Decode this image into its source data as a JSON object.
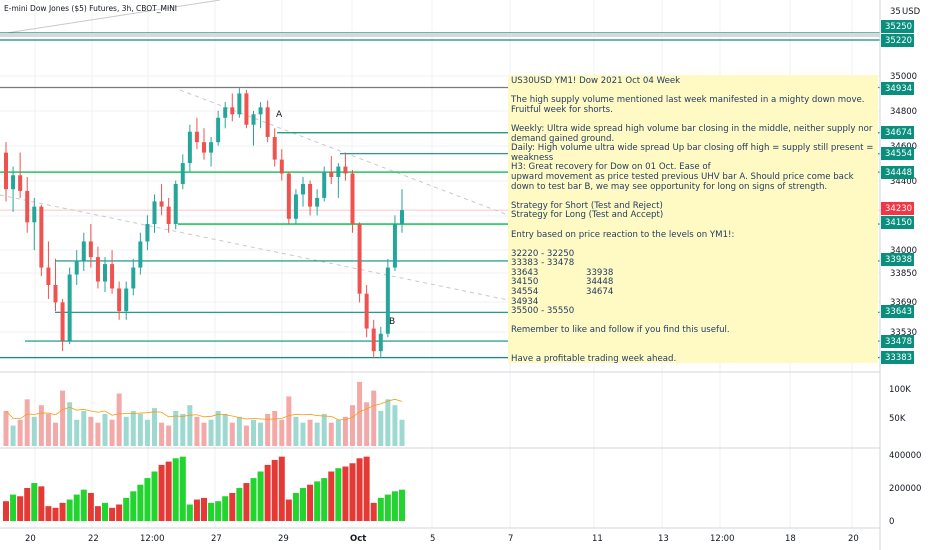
{
  "header": {
    "title": "E-mini Dow Jones ($5) Futures, 3h, CBOT_MINI"
  },
  "axis": {
    "currency": "USD",
    "price_ticks": [
      35000,
      34800,
      34600,
      34400,
      34000,
      33850,
      33690,
      33530
    ],
    "price_top_label": "35",
    "volume_ticks": [
      "100K",
      "50K"
    ],
    "osc_ticks": [
      "400000",
      "200000",
      "0"
    ],
    "time_ticks": [
      "20",
      "22",
      "12:00",
      "27",
      "29",
      "Oct",
      "5",
      "7",
      "11",
      "13",
      "12:00",
      "18",
      "20"
    ]
  },
  "price_badges": [
    {
      "value": "35250",
      "color": "#0a8f7e"
    },
    {
      "value": "35220",
      "color": "#0a8f7e"
    },
    {
      "value": "34934",
      "color": "#0a8f7e"
    },
    {
      "value": "34674",
      "color": "#0a8f7e"
    },
    {
      "value": "34554",
      "color": "#0a8f7e"
    },
    {
      "value": "34448",
      "color": "#0a8f7e"
    },
    {
      "value": "34230",
      "color": "#f23645"
    },
    {
      "value": "34150",
      "color": "#0a8f7e"
    },
    {
      "value": "33938",
      "color": "#0a8f7e"
    },
    {
      "value": "33643",
      "color": "#0a8f7e"
    },
    {
      "value": "33478",
      "color": "#0a8f7e"
    },
    {
      "value": "33383",
      "color": "#0a8f7e"
    }
  ],
  "labels": {
    "a": "A",
    "b": "B"
  },
  "note": {
    "title": "US30USD YM1! Dow 2021 Oct 04 Week",
    "p1": "The high supply volume mentioned last week manifested in a mighty down move.",
    "p2": "Fruitful week for shorts.",
    "p3": "Weekly: Ultra wide spread high volume bar closing in the middle, neither supply nor demand gained ground.",
    "p4": "Daily: High volume ultra wide spread Up bar closing off high = supply still present = weakness",
    "p5": "H3: Great recovery for Dow on 01 Oct. Ease of",
    "p6": "upward movement as price tested previous UHV bar A. Should price come back down to test bar B, we may see opportunity for long on signs of strength.",
    "p7": "Strategy for Short (Test and Reject)",
    "p8": "Strategy for Long (Test and Accept)",
    "p9": "Entry based on price reaction to the levels on YM1!:",
    "lv1": "32220 - 32250",
    "lv2": "33383 - 33478",
    "lv3a": "33643",
    "lv3b": "33938",
    "lv4a": "34150",
    "lv4b": "34448",
    "lv5a": "34554",
    "lv5b": "34674",
    "lv6": "34934",
    "lv7": "35500 - 35550",
    "p10": "Remember to like and follow if you find this useful.",
    "p11": "Have a profitable trading week ahead."
  },
  "chart_data": {
    "type": "candlestick",
    "ylim": [
      33280,
      35350
    ],
    "bar_up_color": "#26a69a",
    "bar_down_color": "#ef5350",
    "candles": [
      [
        34560,
        34620,
        34280,
        34350
      ],
      [
        34350,
        34480,
        34220,
        34430
      ],
      [
        34430,
        34560,
        34300,
        34340
      ],
      [
        34340,
        34420,
        34100,
        34160
      ],
      [
        34160,
        34300,
        34000,
        34250
      ],
      [
        34250,
        34260,
        33850,
        33900
      ],
      [
        33900,
        34050,
        33720,
        33800
      ],
      [
        33800,
        33950,
        33650,
        33700
      ],
      [
        33700,
        33720,
        33420,
        33480
      ],
      [
        33480,
        33900,
        33460,
        33860
      ],
      [
        33860,
        34000,
        33800,
        33940
      ],
      [
        33940,
        34100,
        33880,
        34050
      ],
      [
        34050,
        34150,
        33900,
        33960
      ],
      [
        33960,
        34020,
        33780,
        33820
      ],
      [
        33820,
        33960,
        33760,
        33920
      ],
      [
        33920,
        34000,
        33750,
        33780
      ],
      [
        33780,
        33820,
        33600,
        33650
      ],
      [
        33650,
        33820,
        33600,
        33780
      ],
      [
        33780,
        33950,
        33740,
        33900
      ],
      [
        33900,
        34100,
        33860,
        34050
      ],
      [
        34050,
        34200,
        34000,
        34150
      ],
      [
        34150,
        34320,
        34100,
        34280
      ],
      [
        34280,
        34380,
        34200,
        34250
      ],
      [
        34250,
        34300,
        34100,
        34150
      ],
      [
        34150,
        34400,
        34120,
        34380
      ],
      [
        34380,
        34550,
        34350,
        34500
      ],
      [
        34500,
        34720,
        34450,
        34680
      ],
      [
        34680,
        34760,
        34580,
        34620
      ],
      [
        34620,
        34700,
        34520,
        34560
      ],
      [
        34560,
        34650,
        34480,
        34620
      ],
      [
        34620,
        34800,
        34600,
        34760
      ],
      [
        34760,
        34850,
        34700,
        34820
      ],
      [
        34820,
        34900,
        34740,
        34780
      ],
      [
        34780,
        34930,
        34760,
        34900
      ],
      [
        34900,
        34920,
        34700,
        34720
      ],
      [
        34720,
        34800,
        34600,
        34780
      ],
      [
        34780,
        34850,
        34700,
        34820
      ],
      [
        34820,
        34860,
        34620,
        34650
      ],
      [
        34650,
        34700,
        34480,
        34520
      ],
      [
        34520,
        34580,
        34400,
        34440
      ],
      [
        34440,
        34450,
        34150,
        34180
      ],
      [
        34180,
        34350,
        34150,
        34320
      ],
      [
        34320,
        34420,
        34250,
        34380
      ],
      [
        34380,
        34400,
        34200,
        34250
      ],
      [
        34250,
        34350,
        34200,
        34300
      ],
      [
        34300,
        34480,
        34280,
        34450
      ],
      [
        34450,
        34540,
        34380,
        34420
      ],
      [
        34420,
        34500,
        34300,
        34480
      ],
      [
        34480,
        34560,
        34400,
        34440
      ],
      [
        34440,
        34460,
        34100,
        34150
      ],
      [
        34150,
        34160,
        33700,
        33750
      ],
      [
        33750,
        33800,
        33500,
        33550
      ],
      [
        33550,
        33600,
        33380,
        33420
      ],
      [
        33420,
        33560,
        33380,
        33520
      ],
      [
        33520,
        33950,
        33500,
        33900
      ],
      [
        33900,
        34200,
        33880,
        34150
      ],
      [
        34150,
        34350,
        34100,
        34230
      ]
    ],
    "volume": [
      60,
      35,
      45,
      80,
      50,
      70,
      55,
      40,
      95,
      75,
      45,
      60,
      50,
      40,
      55,
      45,
      90,
      50,
      60,
      55,
      45,
      65,
      40,
      35,
      60,
      55,
      70,
      50,
      40,
      45,
      60,
      55,
      40,
      50,
      35,
      45,
      40,
      55,
      60,
      45,
      85,
      50,
      40,
      45,
      40,
      55,
      40,
      45,
      50,
      70,
      110,
      75,
      95,
      60,
      80,
      70,
      45
    ],
    "oscillator": [
      120,
      160,
      150,
      200,
      230,
      210,
      90,
      80,
      110,
      130,
      160,
      190,
      170,
      90,
      110,
      80,
      100,
      140,
      180,
      220,
      260,
      300,
      340,
      360,
      380,
      390,
      100,
      130,
      140,
      110,
      120,
      150,
      170,
      200,
      230,
      260,
      300,
      340,
      370,
      390,
      130,
      170,
      200,
      220,
      240,
      260,
      300,
      320,
      330,
      350,
      380,
      390,
      110,
      140,
      160,
      180,
      190
    ]
  }
}
